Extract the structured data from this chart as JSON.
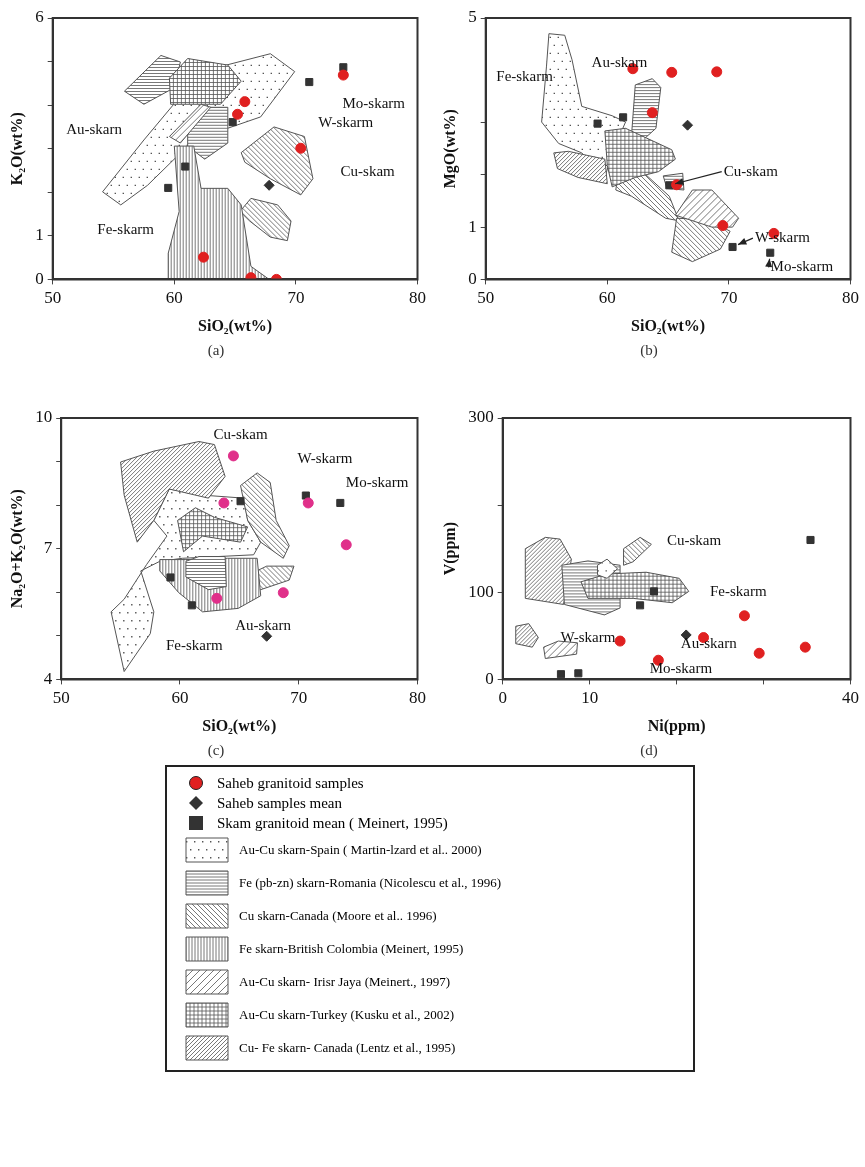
{
  "chart_data": [
    {
      "type": "scatter",
      "subtitle": "(a)",
      "xlabel": "SiO₂(wt%)",
      "ylabel": "K₂O(wt%)",
      "xlim": [
        50,
        80
      ],
      "xticks": [
        50,
        60,
        70,
        80
      ],
      "ylim": [
        0,
        6
      ],
      "yticks": [
        0,
        1,
        {
          "value": 2,
          "label": null
        },
        {
          "value": 3,
          "label": null
        },
        {
          "value": 4,
          "label": null
        },
        {
          "value": 5,
          "label": null
        },
        6
      ],
      "legend": false,
      "annotations": [
        "Mo-skarm",
        "W-skarm",
        "Au-skarn",
        "Cu-skam",
        "Fe-skarm"
      ],
      "series": [
        {
          "type": "scatter",
          "marker": "circle",
          "color": "#e02020",
          "x": [
            65.8,
            65.2,
            70.4,
            62.4,
            66.3,
            68.4,
            73.9
          ],
          "values": [
            4.08,
            3.79,
            3.01,
            0.51,
            0.04,
            0.0,
            4.69
          ]
        },
        {
          "type": "scatter",
          "marker": "diamond",
          "color": "#333333",
          "x": [
            67.8
          ],
          "values": [
            2.16
          ]
        },
        {
          "type": "scatter",
          "marker": "square",
          "color": "#333333",
          "x": [
            73.9,
            71.1,
            60.9,
            59.5,
            64.8
          ],
          "values": [
            4.87,
            4.53,
            2.59,
            2.1,
            3.61
          ]
        }
      ]
    },
    {
      "type": "scatter",
      "subtitle": "(b)",
      "xlabel": "SiO₂(wt%)",
      "ylabel": "MgO(wt%)",
      "xlim": [
        50,
        80
      ],
      "xticks": [
        50,
        60,
        70,
        80
      ],
      "ylim": [
        0,
        5
      ],
      "yticks": [
        0,
        1,
        {
          "value": 2,
          "label": null
        },
        {
          "value": 3,
          "label": null
        },
        5
      ],
      "legend": false,
      "annotations": [
        "Au-skarn",
        "Fe-skarm",
        {
          "text": "Cu-skam",
          "x": 65.1,
          "y": 1.8
        },
        {
          "text": "W-skarm",
          "x": 70.3,
          "y": 0.62
        },
        {
          "text": "Mo-skarm",
          "x": 73.4,
          "y": 0.51
        }
      ],
      "series": [
        {
          "type": "scatter",
          "marker": "circle",
          "color": "#e02020",
          "x": [
            62.1,
            65.3,
            69.0,
            63.7,
            65.7,
            69.5,
            73.7
          ],
          "values": [
            4.03,
            3.96,
            3.97,
            3.19,
            1.81,
            1.03,
            0.88
          ]
        },
        {
          "type": "scatter",
          "marker": "diamond",
          "color": "#333333",
          "x": [
            66.6
          ],
          "values": [
            2.95
          ]
        },
        {
          "type": "scatter",
          "marker": "square",
          "color": "#333333",
          "x": [
            59.2,
            61.3,
            65.1,
            70.3,
            73.4
          ],
          "values": [
            2.98,
            3.1,
            1.8,
            0.62,
            0.51
          ]
        }
      ]
    },
    {
      "type": "scatter",
      "subtitle": "(c)",
      "xlabel": "SiO₂(wt%)",
      "ylabel": "Na₂O+K₂O(wt%)",
      "xlim": [
        50,
        80
      ],
      "xticks": [
        50,
        60,
        70,
        80
      ],
      "ylim": [
        4,
        10
      ],
      "yticks": [
        4,
        {
          "value": 5,
          "label": null
        },
        {
          "value": 6,
          "label": null
        },
        7,
        {
          "value": 8,
          "label": null
        },
        {
          "value": 9,
          "label": null
        },
        10
      ],
      "legend": false,
      "annotations": [
        "Cu-skam",
        "W-skarm",
        "Mo-skarm",
        "Au-skarn",
        "Fe-skarm"
      ],
      "series": [
        {
          "type": "scatter",
          "marker": "circle",
          "color": "#e0308a",
          "x": [
            64.5,
            63.7,
            70.8,
            74.0,
            68.7,
            63.1
          ],
          "values": [
            9.13,
            8.05,
            8.05,
            7.09,
            5.99,
            5.86
          ]
        },
        {
          "type": "scatter",
          "marker": "diamond",
          "color": "#333333",
          "x": [
            67.3
          ],
          "values": [
            4.99
          ]
        },
        {
          "type": "scatter",
          "marker": "square",
          "color": "#333333",
          "x": [
            65.1,
            70.6,
            73.5,
            59.2,
            61.0
          ],
          "values": [
            8.09,
            8.22,
            8.05,
            6.34,
            5.7
          ]
        }
      ]
    },
    {
      "type": "scatter",
      "subtitle": "(d)",
      "xlabel": "Ni(ppm)",
      "ylabel": "V(ppm)",
      "xlim": [
        0,
        40
      ],
      "xticks": [
        0,
        10,
        {
          "value": 20,
          "label": null
        },
        {
          "value": 30,
          "label": null
        },
        40
      ],
      "ylim": [
        0,
        300
      ],
      "yticks": [
        0,
        100,
        {
          "value": 200,
          "label": null
        },
        300
      ],
      "legend": "bottom",
      "annotations": [
        "Cu-skam",
        "Fe-skarm",
        "Au-skarn",
        "W-skarm",
        "Mo-skarm"
      ],
      "series": [
        {
          "name": "Saheb granitoid samples",
          "type": "scatter",
          "marker": "circle",
          "color": "#e02020",
          "x": [
            13.5,
            17.9,
            23.1,
            27.8,
            29.5,
            34.8
          ],
          "values": [
            44,
            22,
            48,
            73,
            30,
            37
          ]
        },
        {
          "name": "Saheb samples mean",
          "type": "scatter",
          "marker": "diamond",
          "color": "#333333",
          "x": [
            21.1
          ],
          "values": [
            51
          ]
        },
        {
          "name": "Skam granitoid mean ( Meinert, 1995)",
          "type": "scatter",
          "marker": "square",
          "color": "#333333",
          "x": [
            6.7,
            8.7,
            15.8,
            17.4,
            35.4
          ],
          "values": [
            6,
            7,
            85,
            101,
            160
          ]
        }
      ]
    },
    {
      "type": "other",
      "annotations": [
        "Au-Cu skarn-Spain ( Martin-lzard et al.. 2000)",
        "Fe (pb-zn) skarn-Romania (Nicolescu et al., 1996)",
        "Cu skarn-Canada (Moore et al.. 1996)",
        "Fe skarn-British Colombia (Meinert, 1995)",
        "Au-Cu skarn- Irisr Jaya (Meinert., 1997)",
        "Au-Cu skarn-Turkey (Kusku et al., 2002)",
        "Cu- Fe skarn- Canada (Lentz et al., 1995)"
      ]
    }
  ]
}
